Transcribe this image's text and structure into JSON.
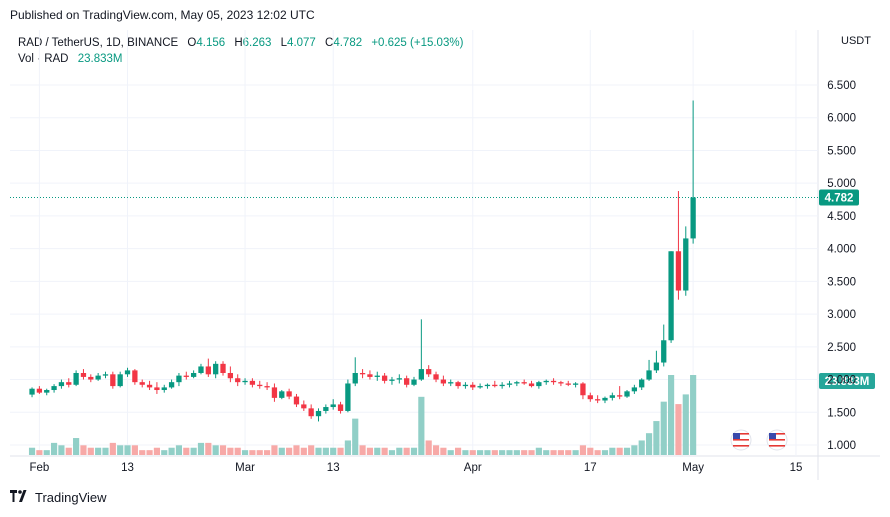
{
  "header": {
    "published": "Published on TradingView.com, May 05, 2023 12:02 UTC"
  },
  "legend": {
    "symbol": "RAD / TetherUS, 1D, BINANCE",
    "o_label": "O",
    "o_value": "4.156",
    "h_label": "H",
    "h_value": "6.263",
    "l_label": "L",
    "l_value": "4.077",
    "c_label": "C",
    "c_value": "4.782",
    "change": "+0.625 (+15.03%)",
    "vol_label": "Vol · RAD",
    "vol_value": "23.833M"
  },
  "price_axis": {
    "currency": "USDT",
    "last_price_label": "4.782",
    "volume_label": "23.833M"
  },
  "brand": {
    "name": "TradingView"
  },
  "colors": {
    "up": "#089981",
    "down": "#F23645",
    "up_vol": "#91CFC7",
    "down_vol": "#F7A9A7",
    "grid": "#F0F3FA"
  },
  "chart_data": {
    "type": "candlestick",
    "symbol": "RAD / TetherUS",
    "interval": "1D",
    "exchange": "BINANCE",
    "ylim": [
      0.85,
      6.5
    ],
    "yticks": [
      "1.000",
      "1.500",
      "2.000",
      "2.500",
      "3.000",
      "3.500",
      "4.000",
      "4.500",
      "5.000",
      "5.500",
      "6.000",
      "6.500"
    ],
    "xticks": [
      {
        "day": 1,
        "label": "Feb"
      },
      {
        "day": 13,
        "label": "13"
      },
      {
        "day": 29,
        "label": "Mar"
      },
      {
        "day": 41,
        "label": "13"
      },
      {
        "day": 60,
        "label": "Apr"
      },
      {
        "day": 76,
        "label": "17"
      },
      {
        "day": 90,
        "label": "May"
      },
      {
        "day": 104,
        "label": "15"
      }
    ],
    "x_range": [
      -3,
      107
    ],
    "last_price": 4.782,
    "last_volume": "23.833M",
    "candles": [
      [
        1.77,
        1.88,
        1.73,
        1.86,
        3
      ],
      [
        1.86,
        1.9,
        1.78,
        1.8,
        2
      ],
      [
        1.8,
        1.86,
        1.76,
        1.84,
        2
      ],
      [
        1.84,
        1.93,
        1.8,
        1.9,
        5
      ],
      [
        1.9,
        2.0,
        1.86,
        1.96,
        4
      ],
      [
        1.96,
        2.02,
        1.88,
        1.92,
        3
      ],
      [
        1.92,
        2.14,
        1.9,
        2.1,
        7
      ],
      [
        2.1,
        2.16,
        2.0,
        2.04,
        4
      ],
      [
        2.04,
        2.08,
        1.96,
        2.0,
        3
      ],
      [
        2.0,
        2.1,
        1.98,
        2.06,
        3
      ],
      [
        2.06,
        2.12,
        2.02,
        2.08,
        3
      ],
      [
        2.08,
        2.12,
        1.86,
        1.9,
        5
      ],
      [
        1.9,
        2.12,
        1.88,
        2.08,
        4
      ],
      [
        2.08,
        2.18,
        2.04,
        2.14,
        4
      ],
      [
        2.14,
        2.16,
        1.92,
        1.96,
        4
      ],
      [
        1.96,
        2.0,
        1.88,
        1.92,
        2
      ],
      [
        1.92,
        1.98,
        1.84,
        1.88,
        2
      ],
      [
        1.88,
        1.96,
        1.78,
        1.84,
        3
      ],
      [
        1.84,
        1.92,
        1.8,
        1.88,
        2
      ],
      [
        1.88,
        2.0,
        1.86,
        1.96,
        3
      ],
      [
        1.96,
        2.1,
        1.9,
        2.06,
        4
      ],
      [
        2.06,
        2.12,
        2.0,
        2.04,
        3
      ],
      [
        2.04,
        2.14,
        2.02,
        2.1,
        3
      ],
      [
        2.1,
        2.24,
        2.08,
        2.2,
        5
      ],
      [
        2.2,
        2.32,
        2.04,
        2.08,
        5
      ],
      [
        2.08,
        2.28,
        2.02,
        2.24,
        4
      ],
      [
        2.24,
        2.28,
        2.06,
        2.1,
        4
      ],
      [
        2.1,
        2.2,
        1.96,
        2.02,
        3
      ],
      [
        2.02,
        2.08,
        1.9,
        1.96,
        3
      ],
      [
        1.96,
        2.02,
        1.92,
        1.98,
        2
      ],
      [
        1.98,
        2.02,
        1.88,
        1.92,
        2
      ],
      [
        1.92,
        1.98,
        1.86,
        1.9,
        2
      ],
      [
        1.9,
        1.96,
        1.84,
        1.88,
        2
      ],
      [
        1.88,
        1.94,
        1.66,
        1.72,
        4
      ],
      [
        1.72,
        1.84,
        1.7,
        1.82,
        3
      ],
      [
        1.82,
        1.86,
        1.7,
        1.74,
        3
      ],
      [
        1.74,
        1.78,
        1.58,
        1.62,
        4
      ],
      [
        1.62,
        1.68,
        1.52,
        1.56,
        3
      ],
      [
        1.56,
        1.62,
        1.4,
        1.44,
        4
      ],
      [
        1.44,
        1.56,
        1.36,
        1.52,
        3
      ],
      [
        1.52,
        1.62,
        1.48,
        1.58,
        3
      ],
      [
        1.58,
        1.7,
        1.54,
        1.62,
        3
      ],
      [
        1.62,
        1.66,
        1.48,
        1.52,
        3
      ],
      [
        1.52,
        2.0,
        1.5,
        1.94,
        6
      ],
      [
        1.94,
        2.34,
        1.9,
        2.1,
        15
      ],
      [
        2.1,
        2.16,
        2.02,
        2.08,
        4
      ],
      [
        2.08,
        2.14,
        2.0,
        2.04,
        3
      ],
      [
        2.04,
        2.12,
        1.98,
        2.06,
        3
      ],
      [
        2.06,
        2.1,
        1.94,
        1.98,
        3
      ],
      [
        1.98,
        2.04,
        1.92,
        2.0,
        2
      ],
      [
        2.0,
        2.08,
        1.94,
        2.02,
        3
      ],
      [
        2.02,
        2.06,
        1.88,
        1.92,
        3
      ],
      [
        1.92,
        2.04,
        1.9,
        2.0,
        3
      ],
      [
        2.0,
        2.92,
        1.98,
        2.16,
        24
      ],
      [
        2.16,
        2.22,
        2.04,
        2.08,
        6
      ],
      [
        2.08,
        2.12,
        1.96,
        2.0,
        4
      ],
      [
        2.0,
        2.06,
        1.9,
        1.94,
        3
      ],
      [
        1.94,
        2.0,
        1.9,
        1.96,
        2
      ],
      [
        1.96,
        1.98,
        1.86,
        1.9,
        3
      ],
      [
        1.9,
        1.96,
        1.86,
        1.92,
        2
      ],
      [
        1.92,
        1.96,
        1.84,
        1.88,
        2
      ],
      [
        1.88,
        1.94,
        1.86,
        1.9,
        2
      ],
      [
        1.9,
        1.94,
        1.86,
        1.92,
        2
      ],
      [
        1.92,
        1.98,
        1.88,
        1.9,
        2
      ],
      [
        1.9,
        1.96,
        1.86,
        1.92,
        2
      ],
      [
        1.92,
        1.98,
        1.88,
        1.94,
        2
      ],
      [
        1.94,
        1.98,
        1.9,
        1.96,
        2
      ],
      [
        1.96,
        2.0,
        1.92,
        1.94,
        2
      ],
      [
        1.94,
        1.98,
        1.88,
        1.9,
        2
      ],
      [
        1.9,
        1.98,
        1.86,
        1.96,
        3
      ],
      [
        1.96,
        2.0,
        1.92,
        1.98,
        2
      ],
      [
        1.98,
        2.02,
        1.92,
        1.96,
        2
      ],
      [
        1.96,
        1.98,
        1.9,
        1.94,
        2
      ],
      [
        1.94,
        1.98,
        1.9,
        1.92,
        2
      ],
      [
        1.92,
        1.96,
        1.88,
        1.94,
        2
      ],
      [
        1.94,
        1.96,
        1.7,
        1.76,
        4
      ],
      [
        1.76,
        1.8,
        1.66,
        1.7,
        3
      ],
      [
        1.7,
        1.76,
        1.64,
        1.68,
        2
      ],
      [
        1.68,
        1.74,
        1.64,
        1.72,
        2
      ],
      [
        1.72,
        1.8,
        1.68,
        1.76,
        3
      ],
      [
        1.76,
        1.9,
        1.7,
        1.74,
        3
      ],
      [
        1.74,
        1.84,
        1.72,
        1.82,
        3
      ],
      [
        1.82,
        1.92,
        1.78,
        1.88,
        4
      ],
      [
        1.88,
        2.02,
        1.84,
        2.0,
        6
      ],
      [
        2.0,
        2.3,
        1.98,
        2.14,
        9
      ],
      [
        2.14,
        2.44,
        2.1,
        2.26,
        14
      ],
      [
        2.26,
        2.84,
        2.2,
        2.6,
        22
      ],
      [
        2.6,
        3.96,
        2.56,
        3.96,
        33
      ],
      [
        3.96,
        4.88,
        3.22,
        3.36,
        21
      ],
      [
        3.36,
        4.34,
        3.28,
        4.156,
        25
      ],
      [
        4.156,
        6.263,
        4.077,
        4.782,
        33
      ]
    ]
  }
}
